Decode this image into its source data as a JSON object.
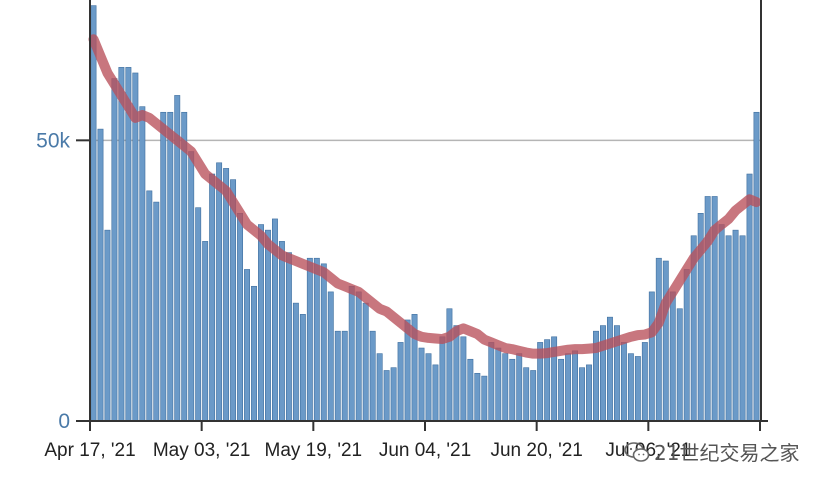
{
  "chart_data": {
    "type": "bar",
    "title": "",
    "xlabel": "",
    "ylabel": "",
    "ylim": [
      0,
      75000
    ],
    "grid": true,
    "legend": "none",
    "y_ticks": [
      {
        "value": 0,
        "label": "0"
      },
      {
        "value": 50000,
        "label": "50k"
      }
    ],
    "x_tick_labels": [
      {
        "day_index": 0,
        "label": "Apr 17, '21"
      },
      {
        "day_index": 16,
        "label": "May 03, '21"
      },
      {
        "day_index": 32,
        "label": "May 19, '21"
      },
      {
        "day_index": 48,
        "label": "Jun 04, '21"
      },
      {
        "day_index": 64,
        "label": "Jun 20, '21"
      },
      {
        "day_index": 80,
        "label": "Jul 06, '21"
      },
      {
        "day_index": 96,
        "label": ""
      }
    ],
    "series": [
      {
        "values": [
          74000,
          52000,
          34000,
          61000,
          63000,
          63000,
          62000,
          56000,
          41000,
          39000,
          55000,
          55000,
          58000,
          55000,
          48000,
          38000,
          32000,
          44000,
          46000,
          45000,
          43000,
          37000,
          27000,
          24000,
          35000,
          34000,
          36000,
          32000,
          30000,
          21000,
          19000,
          29000,
          29000,
          28000,
          23000,
          16000,
          16000,
          24000,
          23000,
          21000,
          16000,
          12000,
          9000,
          9500,
          14000,
          18000,
          19000,
          13000,
          12000,
          10000,
          15000,
          20000,
          17000,
          15000,
          11000,
          8500,
          8000,
          14000,
          13000,
          12000,
          11000,
          12000,
          9500,
          9000,
          14000,
          14500,
          15000,
          11000,
          12000,
          12500,
          9500,
          10000,
          16000,
          17000,
          18500,
          17000,
          14000,
          12000,
          11500,
          14000,
          23000,
          29000,
          28500,
          23000,
          20000,
          27000,
          33000,
          37000,
          40000,
          40000,
          35000,
          33000,
          34000,
          33000,
          44000,
          55000
        ]
      },
      {
        "values": [
          68000,
          65000,
          62000,
          60000,
          58000,
          56000,
          54000,
          54500,
          54000,
          53000,
          52000,
          51000,
          50000,
          49000,
          48000,
          46000,
          44000,
          43000,
          42000,
          41000,
          39000,
          37000,
          35000,
          34000,
          33000,
          31500,
          30500,
          29500,
          29000,
          28500,
          28000,
          27500,
          27000,
          26500,
          25500,
          24500,
          24000,
          23500,
          23000,
          22000,
          21000,
          20000,
          19500,
          18500,
          17500,
          16500,
          15500,
          15000,
          14800,
          14700,
          14600,
          15000,
          16000,
          16500,
          16000,
          15500,
          14500,
          14000,
          13500,
          13000,
          12800,
          12500,
          12200,
          12000,
          12000,
          12100,
          12300,
          12500,
          12700,
          12800,
          12800,
          12900,
          13000,
          13400,
          13800,
          14200,
          14600,
          15000,
          15300,
          15400,
          15800,
          17500,
          21000,
          23000,
          25000,
          27000,
          29000,
          30500,
          32000,
          34000,
          35000,
          36000,
          37500,
          38500,
          39500,
          39000
        ]
      }
    ]
  },
  "colors": {
    "bar": "#6b9ac8",
    "bar_edge": "#3f6f9f",
    "line": "#b8505a",
    "grid": "#b5b5b5",
    "axis": "#333333",
    "y_tick_text": "#4a7aa8"
  },
  "watermark": {
    "text": "21世纪交易之家",
    "icon": "wechat-icon"
  }
}
